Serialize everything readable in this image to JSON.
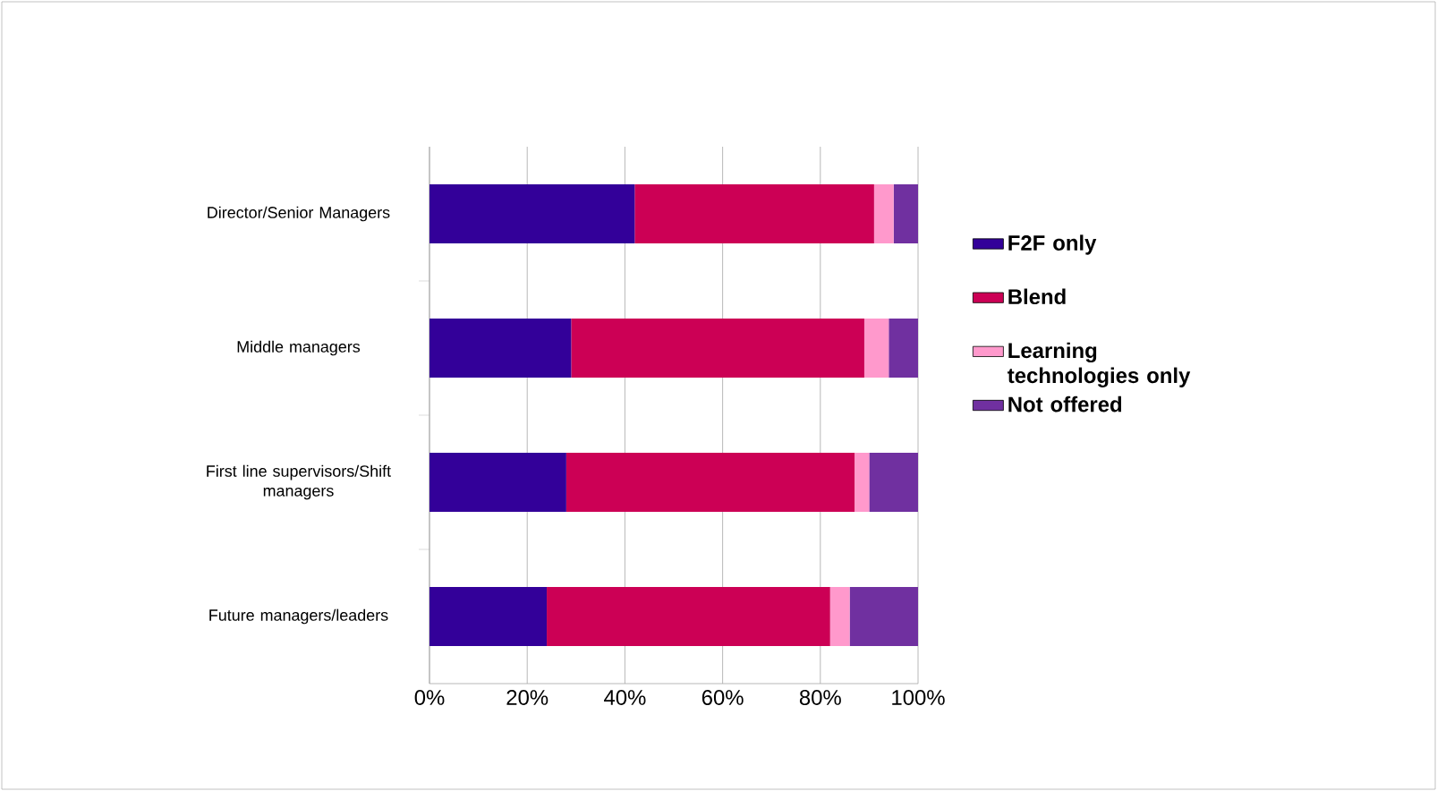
{
  "chart_data": {
    "type": "bar",
    "orientation": "horizontal",
    "stacked": true,
    "categories": [
      "Director/Senior Managers",
      "Middle managers",
      "First line supervisors/Shift managers",
      "Future managers/leaders"
    ],
    "series": [
      {
        "name": "F2F only",
        "color": "#330099",
        "values": [
          42,
          29,
          28,
          24
        ]
      },
      {
        "name": "Blend",
        "color": "#cc0055",
        "values": [
          49,
          60,
          59,
          58
        ]
      },
      {
        "name": "Learning technologies only",
        "color": "#ff99cc",
        "values": [
          4,
          5,
          3,
          4
        ]
      },
      {
        "name": "Not offered",
        "color": "#7030a0",
        "values": [
          5,
          6,
          10,
          14
        ]
      }
    ],
    "xlim": [
      0,
      100
    ],
    "xticks": [
      {
        "value": 0,
        "label": "0%"
      },
      {
        "value": 20,
        "label": "20%"
      },
      {
        "value": 40,
        "label": "40%"
      },
      {
        "value": 60,
        "label": "60%"
      },
      {
        "value": 80,
        "label": "80%"
      },
      {
        "value": 100,
        "label": "100%"
      }
    ],
    "grid": "x",
    "legend": "right"
  }
}
